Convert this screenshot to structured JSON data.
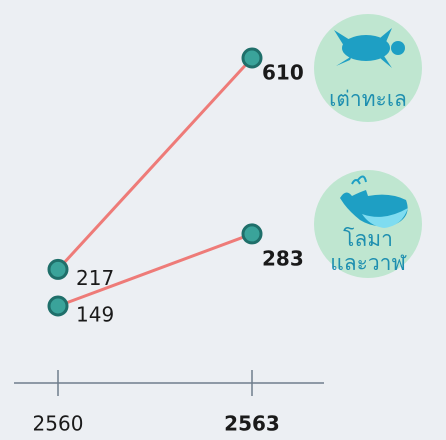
{
  "chart_data": {
    "type": "slope",
    "categories": [
      "2560",
      "2563"
    ],
    "series": [
      {
        "label_lines": [
          "เต่าทะเล"
        ],
        "color": "#ee7b78",
        "values": [
          217,
          610
        ]
      },
      {
        "label_lines": [
          "โลมา",
          "และวาฬ"
        ],
        "color": "#ee7b78",
        "values": [
          149,
          283
        ]
      }
    ],
    "marker_color": "#3aa39a"
  }
}
